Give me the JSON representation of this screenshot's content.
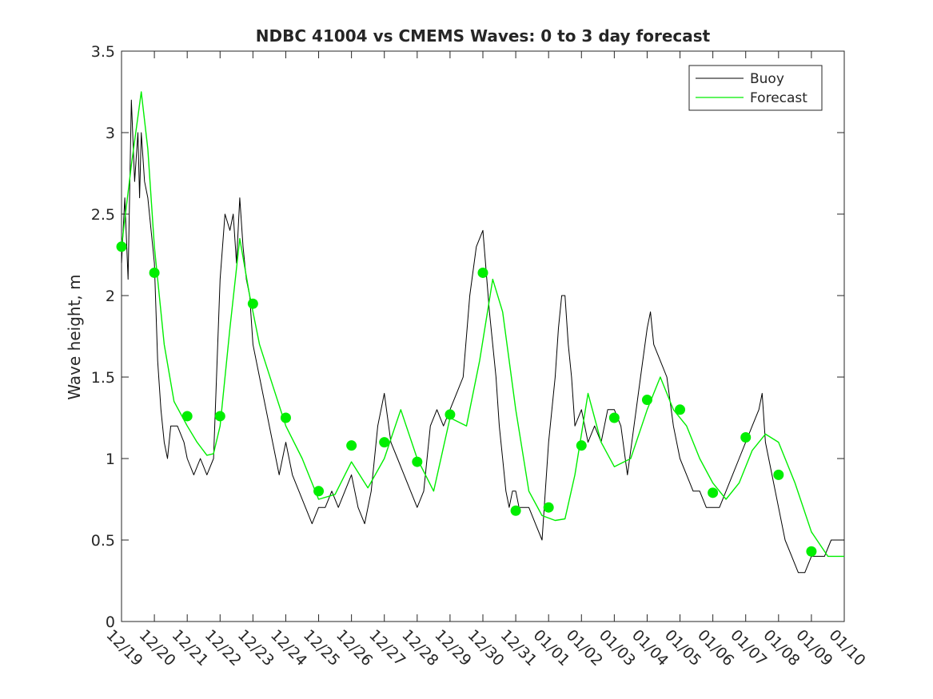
{
  "chart_data": {
    "type": "line",
    "title": "NDBC 41004 vs CMEMS Waves: 0 to 3 day forecast",
    "xlabel": "",
    "ylabel": "Wave height, m",
    "xlim": [
      0,
      22
    ],
    "ylim": [
      0,
      3.5
    ],
    "yticks": [
      0,
      0.5,
      1,
      1.5,
      2,
      2.5,
      3,
      3.5
    ],
    "ytick_labels": [
      "0",
      "0.5",
      "1",
      "1.5",
      "2",
      "2.5",
      "3",
      "3.5"
    ],
    "xtick_labels": [
      "12/19",
      "12/20",
      "12/21",
      "12/22",
      "12/23",
      "12/24",
      "12/25",
      "12/26",
      "12/27",
      "12/28",
      "12/29",
      "12/30",
      "12/31",
      "01/01",
      "01/02",
      "01/03",
      "01/04",
      "01/05",
      "01/06",
      "01/07",
      "01/08",
      "01/09",
      "01/10"
    ],
    "grid": false,
    "legend": {
      "placement": "top-right",
      "entries": [
        "Buoy",
        "Forecast"
      ]
    },
    "colors": {
      "buoy": "#000000",
      "forecast": "#00ee00",
      "axes": "#262626"
    },
    "series": [
      {
        "name": "Buoy",
        "x": [
          0,
          0.1,
          0.2,
          0.3,
          0.4,
          0.5,
          0.55,
          0.6,
          0.7,
          0.8,
          0.9,
          1.0,
          1.1,
          1.2,
          1.3,
          1.4,
          1.5,
          1.7,
          1.9,
          2.0,
          2.2,
          2.4,
          2.6,
          2.8,
          3.0,
          3.15,
          3.3,
          3.4,
          3.5,
          3.6,
          3.7,
          3.8,
          3.9,
          4.0,
          4.2,
          4.4,
          4.6,
          4.8,
          5.0,
          5.2,
          5.4,
          5.6,
          5.8,
          6.0,
          6.2,
          6.4,
          6.6,
          6.8,
          7.0,
          7.2,
          7.4,
          7.6,
          7.8,
          8.0,
          8.2,
          8.4,
          8.6,
          8.8,
          9.0,
          9.2,
          9.4,
          9.6,
          9.8,
          10.0,
          10.2,
          10.4,
          10.6,
          10.8,
          11.0,
          11.2,
          11.4,
          11.5,
          11.6,
          11.7,
          11.8,
          11.9,
          12.0,
          12.1,
          12.2,
          12.4,
          12.6,
          12.8,
          13.0,
          13.2,
          13.3,
          13.4,
          13.5,
          13.6,
          13.7,
          13.8,
          14.0,
          14.2,
          14.4,
          14.6,
          14.8,
          15.0,
          15.2,
          15.4,
          15.6,
          15.8,
          16.0,
          16.1,
          16.2,
          16.4,
          16.6,
          16.8,
          17.0,
          17.2,
          17.4,
          17.6,
          17.8,
          18.0,
          18.2,
          18.4,
          18.6,
          18.8,
          19.0,
          19.2,
          19.4,
          19.5,
          19.6,
          19.8,
          20.0,
          20.2,
          20.4,
          20.6,
          20.8,
          21.0,
          21.2,
          21.4,
          21.6,
          21.8,
          22.0
        ],
        "y": [
          2.2,
          2.6,
          2.1,
          3.2,
          2.7,
          3.0,
          2.6,
          3.0,
          2.7,
          2.6,
          2.4,
          2.2,
          1.6,
          1.3,
          1.1,
          1.0,
          1.2,
          1.2,
          1.1,
          1.0,
          0.9,
          1.0,
          0.9,
          1.0,
          2.1,
          2.5,
          2.4,
          2.5,
          2.2,
          2.6,
          2.3,
          2.1,
          2.0,
          1.7,
          1.5,
          1.3,
          1.1,
          0.9,
          1.1,
          0.9,
          0.8,
          0.7,
          0.6,
          0.7,
          0.7,
          0.8,
          0.7,
          0.8,
          0.9,
          0.7,
          0.6,
          0.8,
          1.2,
          1.4,
          1.1,
          1.0,
          0.9,
          0.8,
          0.7,
          0.8,
          1.2,
          1.3,
          1.2,
          1.3,
          1.4,
          1.5,
          2.0,
          2.3,
          2.4,
          1.9,
          1.5,
          1.2,
          1.0,
          0.8,
          0.7,
          0.8,
          0.8,
          0.7,
          0.7,
          0.7,
          0.6,
          0.5,
          1.1,
          1.5,
          1.8,
          2.0,
          2.0,
          1.7,
          1.5,
          1.2,
          1.3,
          1.1,
          1.2,
          1.1,
          1.3,
          1.3,
          1.2,
          0.9,
          1.2,
          1.5,
          1.8,
          1.9,
          1.7,
          1.6,
          1.5,
          1.2,
          1.0,
          0.9,
          0.8,
          0.8,
          0.7,
          0.7,
          0.7,
          0.8,
          0.9,
          1.0,
          1.1,
          1.2,
          1.3,
          1.4,
          1.1,
          0.9,
          0.7,
          0.5,
          0.4,
          0.3,
          0.3,
          0.4,
          0.4,
          0.4,
          0.5,
          0.5,
          0.5
        ]
      },
      {
        "name": "Forecast",
        "x": [
          0,
          0.3,
          0.6,
          0.8,
          1.0,
          1.3,
          1.6,
          2.0,
          2.3,
          2.6,
          2.8,
          3.0,
          3.3,
          3.6,
          3.9,
          4.2,
          4.6,
          5.0,
          5.5,
          6.0,
          6.5,
          7.0,
          7.5,
          8.0,
          8.5,
          9.0,
          9.5,
          10.0,
          10.5,
          10.9,
          11.3,
          11.6,
          12.0,
          12.4,
          12.8,
          13.2,
          13.5,
          13.8,
          14.2,
          14.6,
          15.0,
          15.5,
          16.0,
          16.4,
          16.8,
          17.2,
          17.6,
          18.0,
          18.4,
          18.8,
          19.2,
          19.6,
          20.0,
          20.5,
          21.0,
          21.5,
          22.0
        ],
        "y": [
          2.3,
          2.8,
          3.25,
          2.9,
          2.3,
          1.7,
          1.35,
          1.2,
          1.1,
          1.02,
          1.03,
          1.2,
          1.8,
          2.35,
          2.0,
          1.7,
          1.45,
          1.2,
          1.0,
          0.75,
          0.78,
          0.98,
          0.82,
          1.0,
          1.3,
          1.0,
          0.8,
          1.25,
          1.2,
          1.6,
          2.1,
          1.9,
          1.3,
          0.8,
          0.65,
          0.62,
          0.63,
          0.9,
          1.4,
          1.1,
          0.95,
          1.0,
          1.3,
          1.5,
          1.3,
          1.2,
          1.0,
          0.85,
          0.75,
          0.85,
          1.05,
          1.15,
          1.1,
          0.85,
          0.55,
          0.4,
          0.4
        ]
      }
    ],
    "forecast_start_markers": {
      "x": [
        0,
        1,
        2,
        3,
        4,
        5,
        6,
        7,
        8,
        9,
        10,
        11,
        12,
        13,
        14,
        15,
        16,
        17,
        18,
        19,
        20,
        21
      ],
      "y": [
        2.3,
        2.14,
        1.26,
        1.26,
        1.95,
        1.25,
        0.8,
        1.08,
        1.1,
        0.98,
        1.27,
        2.14,
        0.68,
        0.7,
        1.08,
        1.25,
        1.36,
        1.3,
        0.79,
        1.13,
        0.9,
        0.43
      ]
    }
  }
}
